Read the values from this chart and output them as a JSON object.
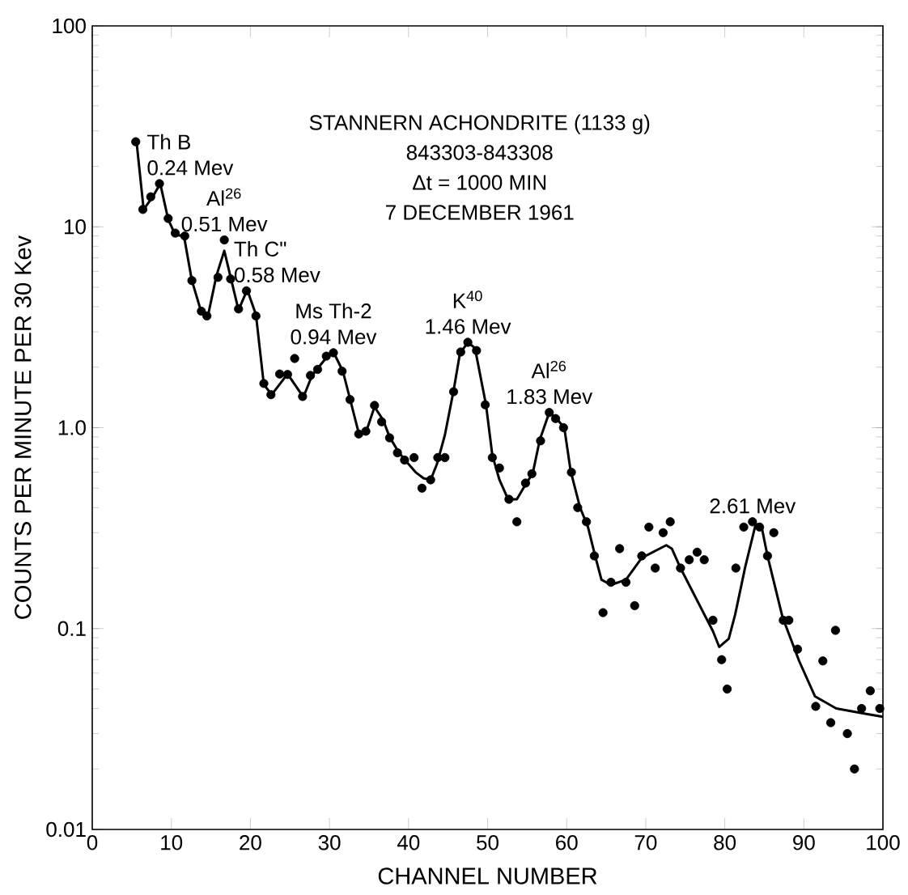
{
  "chart_data": {
    "type": "scatter",
    "title": "STANNERN ACHONDRITE (1133 g)",
    "subtitle": "843303-843308",
    "xlabel": "CHANNEL NUMBER",
    "ylabel": "COUNTS PER MINUTE PER 30 Kev",
    "xlim": [
      0,
      100
    ],
    "ylim": [
      0.01,
      100
    ],
    "log": "y",
    "xticks": [
      0,
      10,
      20,
      30,
      40,
      50,
      60,
      70,
      80,
      90,
      100
    ],
    "yticks": [
      0.01,
      0.1,
      {
        "value": 1,
        "label": "1.0"
      },
      10,
      100
    ],
    "annotations": [
      "Δt = 1000 MIN",
      "7 DECEMBER 1961",
      {
        "text": "Th B",
        "x": 8.5,
        "y": 16.4
      },
      {
        "text": "0.24 Mev",
        "x": 8.5,
        "y": 16.4
      },
      {
        "text": "Al$^{26}$",
        "x": 16.7,
        "y": 8.6
      },
      {
        "text": "0.51 Mev",
        "x": 16.7,
        "y": 8.6
      },
      {
        "text": "Th C\"",
        "x": 19.5,
        "y": 4.8
      },
      {
        "text": "0.58 Mev",
        "x": 19.5,
        "y": 4.8
      },
      {
        "text": "Ms Th-2",
        "x": 30.5,
        "y": 2.36
      },
      {
        "text": "0.94 Mev",
        "x": 30.5,
        "y": 2.36
      },
      {
        "text": "K$^{40}$",
        "x": 47.5,
        "y": 2.66
      },
      {
        "text": "1.46 Mev",
        "x": 47.5,
        "y": 2.66
      },
      {
        "text": "Al$^{26}$",
        "x": 57.8,
        "y": 1.19
      },
      {
        "text": "1.83 Mev",
        "x": 57.8,
        "y": 1.19
      },
      {
        "text": "2.61 Mev",
        "x": 83.5,
        "y": 0.34
      }
    ],
    "series": [
      {
        "color": "#000000",
        "marker": "circle",
        "x": [
          5.5,
          6.4,
          7.4,
          8.5,
          9.6,
          10.5,
          11.7,
          12.6,
          13.8,
          14.5,
          15.9,
          16.7,
          17.5,
          18.5,
          19.5,
          20.7,
          21.7,
          22.6,
          23.7,
          24.7,
          25.6,
          26.6,
          27.6,
          28.5,
          29.6,
          30.5,
          31.6,
          32.6,
          33.7,
          34.6,
          35.7,
          36.6,
          37.6,
          38.6,
          39.5,
          40.7,
          41.7,
          42.8,
          43.7,
          44.6,
          45.7,
          46.6,
          47.5,
          48.6,
          49.7,
          50.6,
          51.5,
          52.7,
          53.7,
          54.8,
          55.6,
          56.7,
          57.8,
          58.6,
          59.6,
          60.6,
          61.4,
          62.5,
          63.5,
          64.6,
          65.6,
          66.7,
          67.5,
          68.6,
          69.5,
          70.4,
          71.2,
          72.2,
          73.1,
          74.4,
          75.5,
          76.5,
          77.4,
          78.5,
          79.6,
          80.3,
          81.4,
          82.4,
          83.5,
          84.4,
          85.4,
          86.2,
          87.4,
          88.1,
          89.2,
          91.5,
          92.4,
          93.4,
          94.0,
          95.5,
          96.4,
          97.3,
          98.4,
          99.6
        ],
        "values": [
          26.5,
          12.2,
          14.1,
          16.4,
          11.0,
          9.3,
          9.0,
          5.4,
          3.8,
          3.6,
          5.6,
          8.6,
          5.5,
          3.9,
          4.8,
          3.6,
          1.66,
          1.46,
          1.85,
          1.84,
          2.21,
          1.43,
          1.82,
          1.95,
          2.27,
          2.36,
          1.91,
          1.38,
          0.93,
          0.96,
          1.29,
          1.07,
          0.89,
          0.75,
          0.69,
          0.71,
          0.5,
          0.55,
          0.71,
          0.71,
          1.51,
          2.38,
          2.66,
          2.42,
          1.3,
          0.71,
          0.63,
          0.44,
          0.34,
          0.53,
          0.59,
          0.86,
          1.19,
          1.11,
          1.0,
          0.6,
          0.4,
          0.34,
          0.23,
          0.12,
          0.17,
          0.25,
          0.17,
          0.13,
          0.23,
          0.32,
          0.2,
          0.3,
          0.34,
          0.2,
          0.22,
          0.24,
          0.22,
          0.11,
          0.07,
          0.05,
          0.2,
          0.32,
          0.34,
          0.32,
          0.23,
          0.3,
          0.11,
          0.11,
          0.079,
          0.041,
          0.069,
          0.034,
          0.098,
          0.03,
          0.02,
          0.04,
          0.049,
          0.04
        ]
      },
      {
        "type": "line",
        "color": "#000000",
        "marker": "none",
        "line_style": "solid",
        "x": [
          5.6,
          6.5,
          7.6,
          8.6,
          9.6,
          10.5,
          11.6,
          12.6,
          13.8,
          14.6,
          15.7,
          16.7,
          17.6,
          18.5,
          19.6,
          20.7,
          21.7,
          22.7,
          24.7,
          26.7,
          27.8,
          29.6,
          30.5,
          31.7,
          32.6,
          33.7,
          34.7,
          35.7,
          36.8,
          37.6,
          38.7,
          39.7,
          40.9,
          41.9,
          42.8,
          43.6,
          44.6,
          45.7,
          46.5,
          47.5,
          48.4,
          49.8,
          50.6,
          51.5,
          52.6,
          53.7,
          54.9,
          55.7,
          56.6,
          57.8,
          58.8,
          59.7,
          60.5,
          61.7,
          62.7,
          63.6,
          64.4,
          65.6,
          67.5,
          69.5,
          72.6,
          73.3,
          74.4,
          78.5,
          79.3,
          80.5,
          81.3,
          82.6,
          83.9,
          84.6,
          85.4,
          87.3,
          89.4,
          91.4,
          94.1,
          97.9,
          100.0
        ],
        "values": [
          26.5,
          12.2,
          14.0,
          16.4,
          10.9,
          9.1,
          9.0,
          5.4,
          3.75,
          3.55,
          5.7,
          7.6,
          5.4,
          3.85,
          4.86,
          3.66,
          1.64,
          1.46,
          1.85,
          1.42,
          1.82,
          2.23,
          2.38,
          1.91,
          1.39,
          0.94,
          0.97,
          1.27,
          1.09,
          0.9,
          0.76,
          0.68,
          0.6,
          0.56,
          0.55,
          0.66,
          0.92,
          1.53,
          2.34,
          2.66,
          2.49,
          1.3,
          0.73,
          0.55,
          0.44,
          0.44,
          0.53,
          0.59,
          0.87,
          1.19,
          1.1,
          1.0,
          0.61,
          0.4,
          0.32,
          0.23,
          0.175,
          0.165,
          0.175,
          0.225,
          0.26,
          0.25,
          0.2,
          0.097,
          0.081,
          0.089,
          0.117,
          0.204,
          0.33,
          0.33,
          0.23,
          0.114,
          0.069,
          0.046,
          0.04,
          0.0376,
          0.0364
        ]
      }
    ]
  }
}
